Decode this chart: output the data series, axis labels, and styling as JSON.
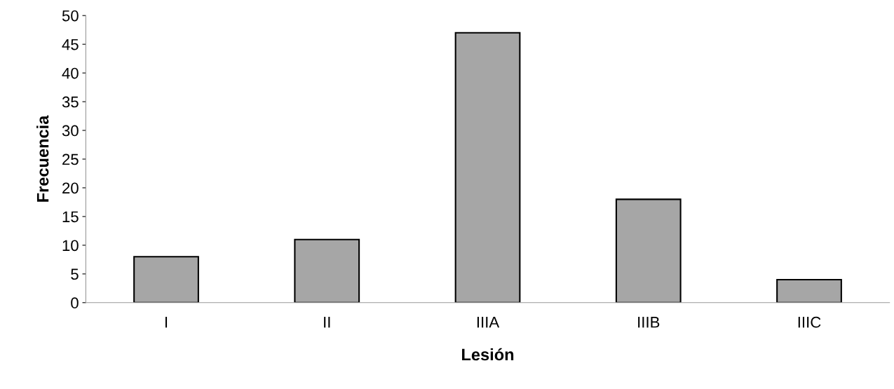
{
  "chart_data": {
    "type": "bar",
    "xlabel": "Lesión",
    "ylabel": "Frecuencia",
    "categories": [
      "I",
      "II",
      "IIIA",
      "IIIB",
      "IIIC"
    ],
    "values": [
      8,
      11,
      47,
      18,
      4
    ],
    "color": "#a6a6a6",
    "ylim": [
      0,
      50
    ],
    "yticks": [
      0,
      5,
      10,
      15,
      20,
      25,
      30,
      35,
      40,
      45,
      50
    ],
    "grid": false,
    "legend": false
  }
}
